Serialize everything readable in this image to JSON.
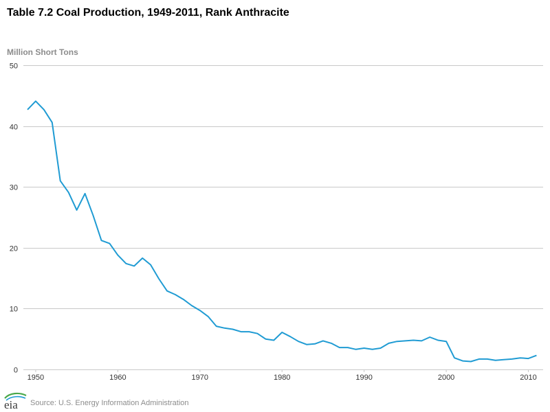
{
  "chart_data": {
    "type": "line",
    "title": "Table 7.2 Coal Production, 1949-2011, Rank Anthracite",
    "ylabel": "Million Short Tons",
    "xlabel": "",
    "ylim": [
      0,
      50
    ],
    "yticks": [
      0,
      10,
      20,
      30,
      40,
      50
    ],
    "xticks": [
      1950,
      1960,
      1970,
      1980,
      1990,
      2000,
      2010
    ],
    "xlim": [
      1948.5,
      2011.8
    ],
    "grid": true,
    "legend": "none",
    "series": [
      {
        "color": "#1f9bd3",
        "x": [
          1949,
          1950,
          1951,
          1952,
          1953,
          1954,
          1955,
          1956,
          1957,
          1958,
          1959,
          1960,
          1961,
          1962,
          1963,
          1964,
          1965,
          1966,
          1967,
          1968,
          1969,
          1970,
          1971,
          1972,
          1973,
          1974,
          1975,
          1976,
          1977,
          1978,
          1979,
          1980,
          1981,
          1982,
          1983,
          1984,
          1985,
          1986,
          1987,
          1988,
          1989,
          1990,
          1991,
          1992,
          1993,
          1994,
          1995,
          1996,
          1997,
          1998,
          1999,
          2000,
          2001,
          2002,
          2003,
          2004,
          2005,
          2006,
          2007,
          2008,
          2009,
          2010,
          2011
        ],
        "values": [
          42.7,
          44.1,
          42.7,
          40.6,
          31.0,
          29.1,
          26.2,
          28.9,
          25.3,
          21.2,
          20.7,
          18.8,
          17.4,
          17.0,
          18.3,
          17.2,
          14.9,
          12.9,
          12.3,
          11.5,
          10.5,
          9.7,
          8.7,
          7.1,
          6.8,
          6.6,
          6.2,
          6.2,
          5.9,
          5.0,
          4.8,
          6.1,
          5.4,
          4.6,
          4.1,
          4.2,
          4.7,
          4.3,
          3.6,
          3.6,
          3.3,
          3.5,
          3.3,
          3.5,
          4.3,
          4.6,
          4.7,
          4.8,
          4.7,
          5.3,
          4.8,
          4.6,
          1.9,
          1.4,
          1.3,
          1.7,
          1.7,
          1.5,
          1.6,
          1.7,
          1.9,
          1.8,
          2.3
        ]
      }
    ]
  },
  "source": "Source: U.S. Energy Information Administration",
  "logo_text": "eia"
}
